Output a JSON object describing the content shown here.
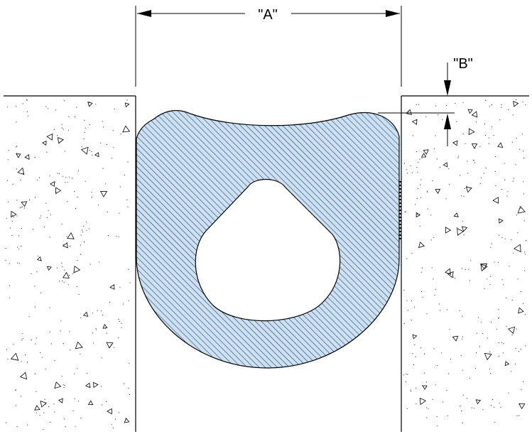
{
  "diagram": {
    "dimension_a_label": "\"A\"",
    "dimension_b_label": "\"B\"",
    "colors": {
      "seal_fill": "#cfe0ef",
      "seal_hatch": "#1f4e96",
      "outline": "#000000",
      "concrete_speckle": "#333333"
    },
    "elements": [
      "left-concrete-slab",
      "right-concrete-slab",
      "compression-seal",
      "dimension-a",
      "dimension-b"
    ]
  }
}
